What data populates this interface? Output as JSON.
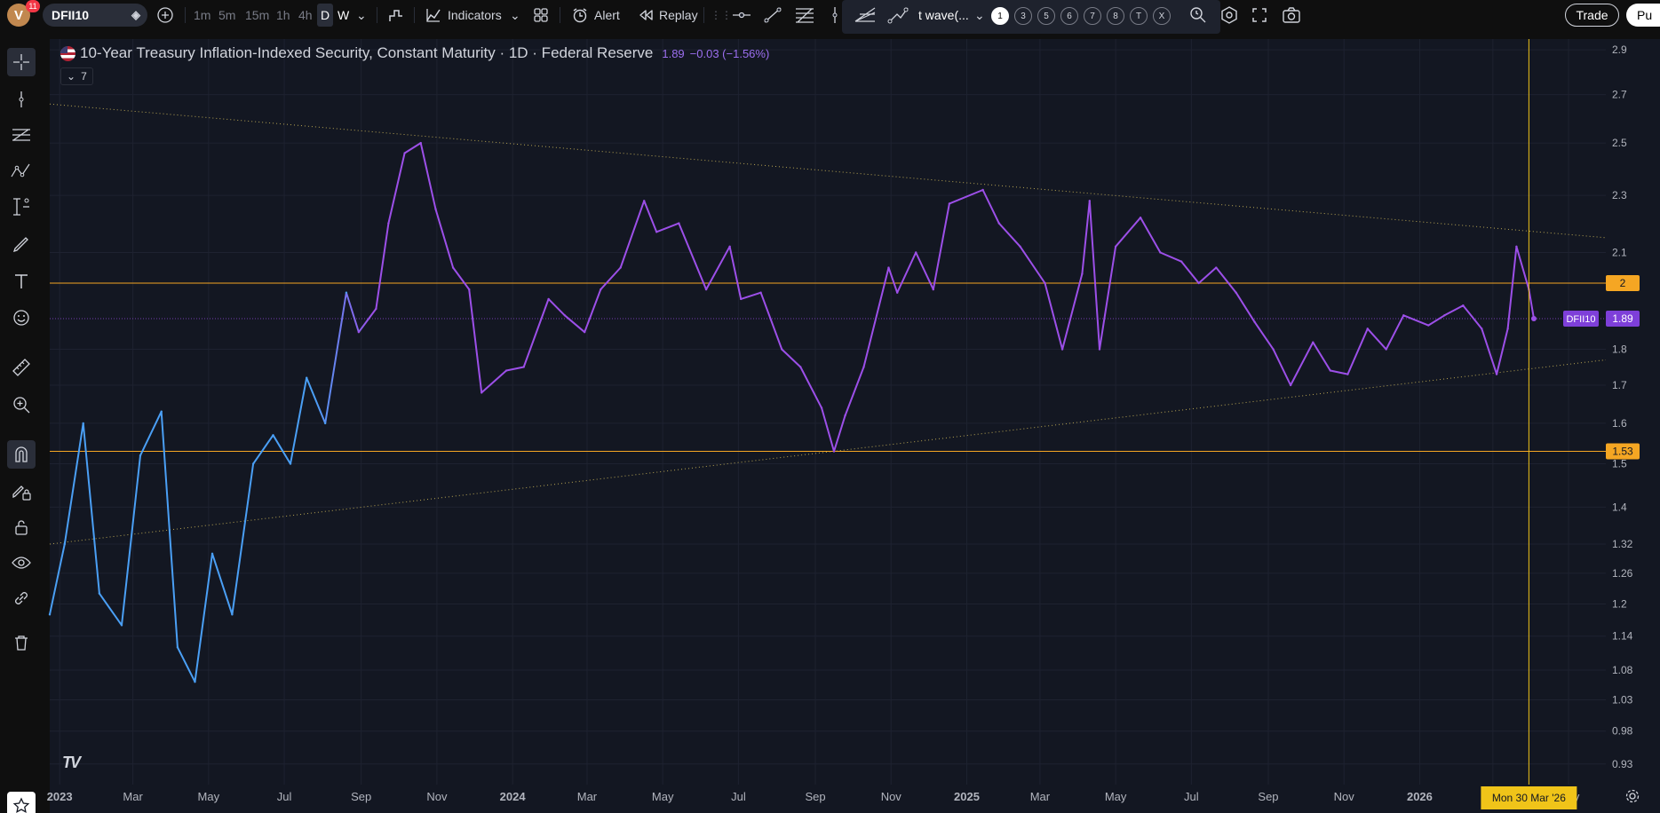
{
  "user": {
    "avatar_letter": "V",
    "notification_count": "11"
  },
  "header": {
    "symbol": "DFII10",
    "timeframes": [
      "1m",
      "5m",
      "15m",
      "1h",
      "4h",
      "D",
      "W"
    ],
    "active_timeframe": "D",
    "indicators_label": "Indicators",
    "alert_label": "Alert",
    "replay_label": "Replay",
    "draw_tool_label": "t wave(...",
    "wave_levels": [
      "1",
      "3",
      "5",
      "6",
      "7",
      "8",
      "T",
      "X"
    ],
    "trade_label": "Trade",
    "publish_label": "Pu"
  },
  "legend": {
    "title": "10-Year Treasury Inflation-Indexed Security, Constant Maturity · 1D · Federal Reserve",
    "last": "1.89",
    "change": "−0.03 (−1.56%)",
    "collapse_count": "7"
  },
  "colors": {
    "background": "#131722",
    "series_start": "#4a9ff5",
    "series_end": "#9c4fe8",
    "horizontal_level": "#f5a623",
    "trendline": "#c9b458",
    "crosshair": "#f0c419",
    "price_badge": "#7e3fd9"
  },
  "chart_data": {
    "type": "line",
    "symbol": "DFII10",
    "title": "10-Year Treasury Inflation-Indexed Security, Constant Maturity · 1D · Federal Reserve",
    "y_ticks": [
      "2.9",
      "2.7",
      "2.5",
      "2.3",
      "2.1",
      "1.8",
      "1.7",
      "1.6",
      "1.5",
      "1.4",
      "1.32",
      "1.26",
      "1.2",
      "1.14",
      "1.08",
      "1.03",
      "0.98",
      "0.93"
    ],
    "y_scale": "log",
    "ylim": [
      0.9,
      2.95
    ],
    "x_ticks": [
      "2023",
      "Mar",
      "May",
      "Jul",
      "Sep",
      "Nov",
      "2024",
      "Mar",
      "May",
      "Jul",
      "Sep",
      "Nov",
      "2025",
      "Mar",
      "May",
      "Jul",
      "Sep",
      "Nov",
      "2026",
      "Mar",
      "May"
    ],
    "x_tick_dates": [
      "2023-01-01",
      "2023-03-01",
      "2023-05-01",
      "2023-07-01",
      "2023-09-01",
      "2023-11-01",
      "2024-01-01",
      "2024-03-01",
      "2024-05-01",
      "2024-07-01",
      "2024-09-01",
      "2024-11-01",
      "2025-01-01",
      "2025-03-01",
      "2025-05-01",
      "2025-07-01",
      "2025-09-01",
      "2025-11-01",
      "2026-01-01",
      "2026-03-01",
      "2026-05-01"
    ],
    "xlim": [
      "2022-12-24",
      "2026-05-31"
    ],
    "series": [
      {
        "name": "DFII10",
        "x": [
          "2022-12-24",
          "2023-01-05",
          "2023-01-20",
          "2023-02-02",
          "2023-02-20",
          "2023-03-07",
          "2023-03-24",
          "2023-04-06",
          "2023-04-20",
          "2023-05-04",
          "2023-05-20",
          "2023-06-06",
          "2023-06-22",
          "2023-07-06",
          "2023-07-19",
          "2023-08-03",
          "2023-08-20",
          "2023-08-30",
          "2023-09-13",
          "2023-09-23",
          "2023-10-06",
          "2023-10-19",
          "2023-10-31",
          "2023-11-14",
          "2023-11-27",
          "2023-12-07",
          "2023-12-27",
          "2024-01-10",
          "2024-01-30",
          "2024-02-12",
          "2024-02-28",
          "2024-03-12",
          "2024-03-28",
          "2024-04-16",
          "2024-04-26",
          "2024-05-14",
          "2024-06-05",
          "2024-06-24",
          "2024-07-03",
          "2024-07-19",
          "2024-08-05",
          "2024-08-20",
          "2024-09-06",
          "2024-09-16",
          "2024-09-25",
          "2024-10-10",
          "2024-10-30",
          "2024-11-06",
          "2024-11-21",
          "2024-12-05",
          "2024-12-18",
          "2025-01-14",
          "2025-01-27",
          "2025-02-13",
          "2025-03-05",
          "2025-03-19",
          "2025-04-04",
          "2025-04-10",
          "2025-04-18",
          "2025-05-01",
          "2025-05-21",
          "2025-06-06",
          "2025-06-23",
          "2025-07-07",
          "2025-07-21",
          "2025-08-06",
          "2025-08-21",
          "2025-09-05",
          "2025-09-19",
          "2025-10-07",
          "2025-10-21",
          "2025-11-04",
          "2025-11-20",
          "2025-12-05",
          "2025-12-19",
          "2026-01-08",
          "2026-01-21",
          "2026-02-05",
          "2026-02-20",
          "2026-03-04",
          "2026-03-13",
          "2026-03-20",
          "2026-03-30",
          "2026-04-03"
        ],
        "values": [
          1.18,
          1.32,
          1.6,
          1.22,
          1.16,
          1.52,
          1.63,
          1.12,
          1.06,
          1.3,
          1.18,
          1.5,
          1.57,
          1.5,
          1.72,
          1.6,
          1.97,
          1.85,
          1.92,
          2.2,
          2.46,
          2.5,
          2.25,
          2.05,
          1.98,
          1.68,
          1.74,
          1.75,
          1.95,
          1.9,
          1.85,
          1.98,
          2.05,
          2.28,
          2.17,
          2.2,
          1.98,
          2.12,
          1.95,
          1.97,
          1.8,
          1.75,
          1.64,
          1.53,
          1.62,
          1.75,
          2.05,
          1.97,
          2.1,
          1.98,
          2.27,
          2.32,
          2.2,
          2.12,
          2.0,
          1.8,
          2.03,
          2.28,
          1.8,
          2.12,
          2.22,
          2.1,
          2.07,
          2.0,
          2.05,
          1.97,
          1.88,
          1.8,
          1.7,
          1.82,
          1.74,
          1.73,
          1.86,
          1.8,
          1.9,
          1.87,
          1.9,
          1.93,
          1.86,
          1.73,
          1.86,
          2.12,
          1.98,
          1.89
        ]
      }
    ],
    "price_labels": [
      {
        "label": "2",
        "value": 2.0
      },
      {
        "label": "1.53",
        "value": 1.53
      }
    ],
    "trendlines": [
      {
        "from": [
          "2022-12-24",
          2.66
        ],
        "to": [
          "2026-05-31",
          2.15
        ]
      },
      {
        "from": [
          "2022-12-24",
          1.32
        ],
        "to": [
          "2026-05-31",
          1.77
        ]
      }
    ],
    "last_value_label": {
      "symbol": "DFII10",
      "value": "1.89"
    },
    "crosshair_date": "2026-03-30",
    "crosshair_date_label": "Mon 30 Mar '26"
  }
}
